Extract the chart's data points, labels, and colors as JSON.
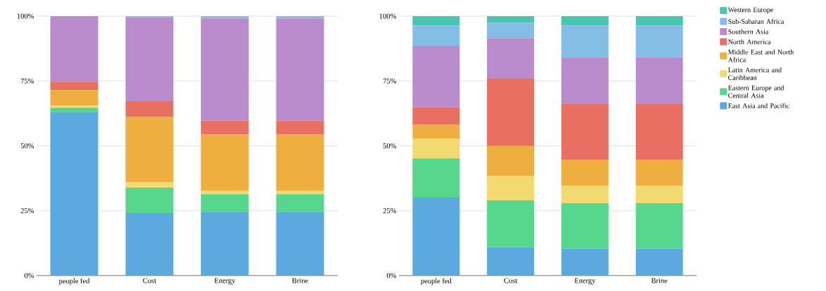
{
  "chart_data": [
    {
      "type": "bar",
      "stacked": true,
      "categories": [
        "people fed",
        "Cost",
        "Energy",
        "Brine"
      ],
      "ylim": [
        0,
        100
      ],
      "yticks": [
        {
          "value": 0,
          "label": "0%"
        },
        {
          "value": 25,
          "label": "25%"
        },
        {
          "value": 50,
          "label": "50%"
        },
        {
          "value": 75,
          "label": "75%"
        },
        {
          "value": 100,
          "label": "100%"
        }
      ],
      "grid": "y",
      "series": [
        {
          "color": "#5ca9e0",
          "values": [
            63.1,
            24.1,
            24.4,
            24.4
          ]
        },
        {
          "color": "#57d68d",
          "values": [
            1.6,
            9.8,
            7.0,
            7.0
          ]
        },
        {
          "color": "#f3da70",
          "values": [
            0.9,
            2.1,
            1.4,
            1.4
          ]
        },
        {
          "color": "#eeae40",
          "values": [
            5.9,
            25.1,
            21.6,
            21.6
          ]
        },
        {
          "color": "#ea6f63",
          "values": [
            3.2,
            6.1,
            5.3,
            5.3
          ]
        },
        {
          "color": "#b98bcd",
          "values": [
            25.3,
            32.3,
            39.4,
            39.4
          ]
        },
        {
          "color": "#84bde6",
          "values": [
            0,
            0.5,
            0.9,
            0.9
          ]
        },
        {
          "color": "#47c6b0",
          "values": [
            0,
            0,
            0,
            0
          ]
        }
      ]
    },
    {
      "type": "bar",
      "stacked": true,
      "categories": [
        "people fed",
        "Cost",
        "Energy",
        "Brine"
      ],
      "ylim": [
        0,
        100
      ],
      "yticks": [
        {
          "value": 0,
          "label": "0%"
        },
        {
          "value": 25,
          "label": "25%"
        },
        {
          "value": 50,
          "label": "50%"
        },
        {
          "value": 75,
          "label": "75%"
        },
        {
          "value": 100,
          "label": "100%"
        }
      ],
      "grid": "y",
      "legend": "right",
      "series": [
        {
          "name": "East Asia and Pacific",
          "color": "#5ca9e0",
          "values": [
            30.1,
            10.9,
            10.4,
            10.4
          ]
        },
        {
          "name": "Eastern Europe and Central Asia",
          "color": "#57d68d",
          "values": [
            15.1,
            18.1,
            17.5,
            17.5
          ]
        },
        {
          "name": "Latin America and Caribbean",
          "color": "#f3da70",
          "values": [
            7.5,
            9.3,
            6.8,
            6.8
          ]
        },
        {
          "name": "Middle East and North Africa",
          "color": "#eeae40",
          "values": [
            5.5,
            11.6,
            10.0,
            10.0
          ]
        },
        {
          "name": "North America",
          "color": "#ea6f63",
          "values": [
            6.7,
            26.0,
            21.6,
            21.6
          ]
        },
        {
          "name": "Southern Asia",
          "color": "#b98bcd",
          "values": [
            23.7,
            15.6,
            17.8,
            17.8
          ]
        },
        {
          "name": "Sub-Saharan Africa",
          "color": "#84bde6",
          "values": [
            7.8,
            5.9,
            12.3,
            12.3
          ]
        },
        {
          "name": "Western Europe",
          "color": "#47c6b0",
          "values": [
            3.6,
            2.6,
            3.6,
            3.6
          ]
        }
      ]
    }
  ]
}
